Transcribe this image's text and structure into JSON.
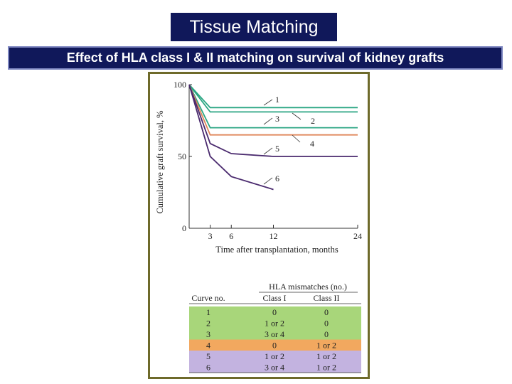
{
  "header": {
    "title": "Tissue Matching",
    "subtitle": "Effect of HLA class I & II matching on survival of kidney grafts"
  },
  "colors": {
    "header_bg": "#10185a",
    "panel_border": "#6e6a2a",
    "curve_green": "#2aa683",
    "curve_orange": "#e0875a",
    "curve_purple": "#4a2a6e",
    "row_green": "#a8d67a",
    "row_orange": "#f2a85f",
    "row_purple": "#c3b3e0"
  },
  "chart_data": {
    "type": "line",
    "xlabel": "Time after transplantation, months",
    "ylabel": "Cumulative graft survival, %",
    "x_ticks": [
      3,
      6,
      12,
      24
    ],
    "y_ticks": [
      0,
      50,
      100
    ],
    "xlim": [
      0,
      24
    ],
    "ylim": [
      0,
      100
    ],
    "series": [
      {
        "name": "1",
        "color": "#2aa683",
        "x": [
          0,
          3,
          24
        ],
        "y": [
          100,
          84,
          84
        ]
      },
      {
        "name": "2",
        "color": "#2aa683",
        "x": [
          0,
          3,
          24
        ],
        "y": [
          100,
          81,
          81
        ]
      },
      {
        "name": "3",
        "color": "#2aa683",
        "x": [
          0,
          3,
          24
        ],
        "y": [
          100,
          70,
          70
        ]
      },
      {
        "name": "4",
        "color": "#e0875a",
        "x": [
          0,
          3,
          24
        ],
        "y": [
          100,
          65,
          65
        ]
      },
      {
        "name": "5",
        "color": "#4a2a6e",
        "x": [
          0,
          3,
          6,
          12,
          24
        ],
        "y": [
          100,
          59,
          52,
          50,
          50
        ]
      },
      {
        "name": "6",
        "color": "#4a2a6e",
        "x": [
          0,
          3,
          6,
          12
        ],
        "y": [
          100,
          50,
          36,
          27
        ]
      }
    ],
    "table": {
      "group_header": "HLA mismatches (no.)",
      "columns": [
        "Curve no.",
        "Class I",
        "Class II"
      ],
      "rows": [
        {
          "cells": [
            "1",
            "0",
            "0"
          ],
          "color": "#a8d67a"
        },
        {
          "cells": [
            "2",
            "1 or 2",
            "0"
          ],
          "color": "#a8d67a"
        },
        {
          "cells": [
            "3",
            "3 or 4",
            "0"
          ],
          "color": "#a8d67a"
        },
        {
          "cells": [
            "4",
            "0",
            "1 or 2"
          ],
          "color": "#f2a85f"
        },
        {
          "cells": [
            "5",
            "1 or 2",
            "1 or 2"
          ],
          "color": "#c3b3e0"
        },
        {
          "cells": [
            "6",
            "3 or 4",
            "1 or 2"
          ],
          "color": "#c3b3e0"
        }
      ]
    }
  }
}
